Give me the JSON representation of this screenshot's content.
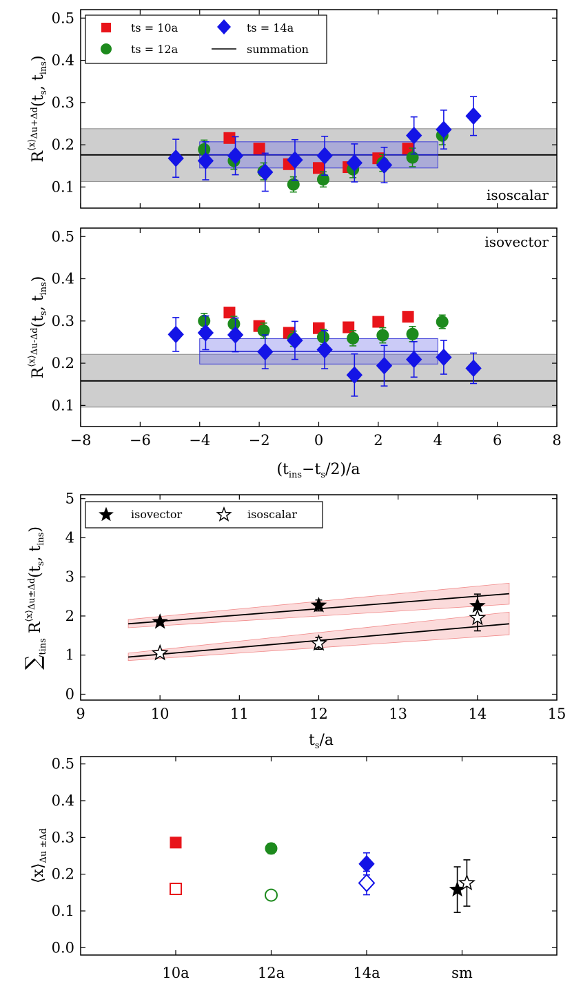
{
  "chart_data": [
    {
      "id": "panel1",
      "type": "scatter",
      "annotation": "isoscalar",
      "ylabel": "R⟨x⟩Δu+Δd(ts, tins)",
      "xlim": [
        -8,
        8
      ],
      "ylim": [
        0.05,
        0.52
      ],
      "yticks": [
        "0.1",
        "0.2",
        "0.3",
        "0.4",
        "0.5"
      ],
      "legend": [
        {
          "marker": "square",
          "color": "#e8141a",
          "label": "ts = 10a"
        },
        {
          "marker": "diamond",
          "color": "#1414e6",
          "label": "ts = 14a"
        },
        {
          "marker": "circle",
          "color": "#1d8a1d",
          "label": "ts = 12a"
        },
        {
          "marker": "line",
          "color": "#000000",
          "label": "summation"
        }
      ],
      "summation": {
        "value": 0.176,
        "low": 0.113,
        "high": 0.238
      },
      "plateau": {
        "x0": -4,
        "x1": 4,
        "value": 0.176,
        "low": 0.145,
        "high": 0.207
      },
      "series": [
        {
          "name": "ts = 10a",
          "marker": "square",
          "color": "#e8141a",
          "x": [
            -3,
            -2,
            -1,
            0,
            1,
            2,
            3
          ],
          "y": [
            0.216,
            0.191,
            0.154,
            0.145,
            0.147,
            0.168,
            0.191
          ],
          "err": [
            0.008,
            0.008,
            0.008,
            0.008,
            0.008,
            0.008,
            0.008
          ]
        },
        {
          "name": "ts = 12a",
          "marker": "circle",
          "color": "#1d8a1d",
          "x": [
            -3.85,
            -2.85,
            -1.85,
            -0.85,
            0.15,
            1.15,
            2.15,
            3.15,
            4.15
          ],
          "y": [
            0.189,
            0.162,
            0.137,
            0.106,
            0.118,
            0.142,
            0.157,
            0.17,
            0.222
          ],
          "err": [
            0.022,
            0.02,
            0.02,
            0.018,
            0.018,
            0.02,
            0.02,
            0.022,
            0.022
          ]
        },
        {
          "name": "ts = 14a",
          "marker": "diamond",
          "color": "#1414e6",
          "x": [
            -4.8,
            -3.8,
            -2.8,
            -1.8,
            -0.8,
            0.2,
            1.2,
            2.2,
            3.2,
            4.2,
            5.2
          ],
          "y": [
            0.168,
            0.162,
            0.174,
            0.135,
            0.164,
            0.174,
            0.157,
            0.152,
            0.222,
            0.236,
            0.268
          ],
          "err": [
            0.045,
            0.045,
            0.045,
            0.045,
            0.048,
            0.046,
            0.045,
            0.042,
            0.044,
            0.046,
            0.046
          ]
        }
      ]
    },
    {
      "id": "panel2",
      "type": "scatter",
      "annotation": "isovector",
      "ylabel": "R⟨x⟩Δu-Δd(ts, tins)",
      "xlabel": "(tins−ts/2)/a",
      "xlim": [
        -8,
        8
      ],
      "ylim": [
        0.05,
        0.52
      ],
      "xticks": [
        "−8",
        "−6",
        "−4",
        "−2",
        "0",
        "2",
        "4",
        "6",
        "8"
      ],
      "yticks": [
        "0.1",
        "0.2",
        "0.3",
        "0.4",
        "0.5"
      ],
      "summation": {
        "value": 0.158,
        "low": 0.096,
        "high": 0.221
      },
      "plateau": {
        "x0": -4,
        "x1": 4,
        "value": 0.228,
        "low": 0.198,
        "high": 0.258
      },
      "series": [
        {
          "name": "ts = 10a",
          "marker": "square",
          "color": "#e8141a",
          "x": [
            -3,
            -2,
            -1,
            0,
            1,
            2,
            3
          ],
          "y": [
            0.32,
            0.288,
            0.272,
            0.283,
            0.285,
            0.298,
            0.31
          ],
          "err": [
            0.008,
            0.008,
            0.008,
            0.008,
            0.008,
            0.008,
            0.008
          ]
        },
        {
          "name": "ts = 12a",
          "marker": "circle",
          "color": "#1d8a1d",
          "x": [
            -3.85,
            -2.85,
            -1.85,
            -0.85,
            0.15,
            1.15,
            2.15,
            3.15,
            4.15
          ],
          "y": [
            0.3,
            0.293,
            0.277,
            0.258,
            0.262,
            0.259,
            0.266,
            0.269,
            0.298
          ],
          "err": [
            0.018,
            0.018,
            0.018,
            0.018,
            0.018,
            0.018,
            0.018,
            0.018,
            0.016
          ]
        },
        {
          "name": "ts = 14a",
          "marker": "diamond",
          "color": "#1414e6",
          "x": [
            -4.8,
            -3.8,
            -2.8,
            -1.8,
            -0.8,
            0.2,
            1.2,
            2.2,
            3.2,
            4.2,
            5.2
          ],
          "y": [
            0.268,
            0.272,
            0.267,
            0.227,
            0.254,
            0.232,
            0.172,
            0.194,
            0.209,
            0.214,
            0.188
          ],
          "err": [
            0.04,
            0.04,
            0.04,
            0.04,
            0.045,
            0.045,
            0.05,
            0.048,
            0.042,
            0.04,
            0.036
          ]
        }
      ]
    },
    {
      "id": "panel3",
      "type": "scatter",
      "ylabel": "∑tins R⟨x⟩Δu±Δd(ts, tins)",
      "xlabel": "ts/a",
      "xlim": [
        9,
        15
      ],
      "ylim": [
        -0.15,
        5.1
      ],
      "xticks": [
        "9",
        "10",
        "11",
        "12",
        "13",
        "14",
        "15"
      ],
      "yticks": [
        "0",
        "1",
        "2",
        "3",
        "4",
        "5"
      ],
      "legend": [
        {
          "marker": "filled-star",
          "label": "isovector"
        },
        {
          "marker": "open-star",
          "label": "isoscalar"
        }
      ],
      "fits": [
        {
          "name": "isovector",
          "x": [
            9.6,
            14.4
          ],
          "y": [
            1.8,
            2.57
          ],
          "band": [
            [
              1.7,
              1.91
            ],
            [
              2.3,
              2.84
            ]
          ]
        },
        {
          "name": "isoscalar",
          "x": [
            9.6,
            14.4
          ],
          "y": [
            0.95,
            1.8
          ],
          "band": [
            [
              0.86,
              1.05
            ],
            [
              1.52,
              2.1
            ]
          ]
        }
      ],
      "series": [
        {
          "name": "isovector",
          "marker": "filled-star",
          "color": "#000000",
          "x": [
            10,
            12,
            14
          ],
          "y": [
            1.85,
            2.27,
            2.26
          ],
          "err": [
            0.05,
            0.14,
            0.3
          ]
        },
        {
          "name": "isoscalar",
          "marker": "open-star",
          "color": "#000000",
          "x": [
            10,
            12,
            14
          ],
          "y": [
            1.05,
            1.3,
            1.95
          ],
          "err": [
            0.05,
            0.15,
            0.33
          ]
        }
      ]
    },
    {
      "id": "panel4",
      "type": "scatter",
      "ylabel": "⟨x⟩Δu±Δd",
      "categories": [
        "10a",
        "12a",
        "14a",
        "sm"
      ],
      "ylim": [
        -0.02,
        0.52
      ],
      "yticks": [
        "0.0",
        "0.1",
        "0.2",
        "0.3",
        "0.4",
        "0.5"
      ],
      "points": [
        {
          "category": "10a",
          "marker": "square",
          "filled": true,
          "color": "#e8141a",
          "y": 0.286,
          "err": 0.008
        },
        {
          "category": "10a",
          "marker": "square",
          "filled": false,
          "color": "#e8141a",
          "y": 0.16,
          "err": 0.008
        },
        {
          "category": "12a",
          "marker": "circle",
          "filled": true,
          "color": "#1d8a1d",
          "y": 0.27,
          "err": 0.014
        },
        {
          "category": "12a",
          "marker": "circle",
          "filled": false,
          "color": "#1d8a1d",
          "y": 0.143,
          "err": 0.013
        },
        {
          "category": "14a",
          "marker": "diamond",
          "filled": true,
          "color": "#1414e6",
          "y": 0.228,
          "err": 0.03
        },
        {
          "category": "14a",
          "marker": "diamond",
          "filled": false,
          "color": "#1414e6",
          "y": 0.176,
          "err": 0.032
        },
        {
          "category": "sm",
          "marker": "star",
          "filled": true,
          "color": "#000000",
          "y": 0.158,
          "err": 0.062,
          "offset": -0.03
        },
        {
          "category": "sm",
          "marker": "star",
          "filled": false,
          "color": "#000000",
          "y": 0.176,
          "err": 0.063,
          "offset": 0.03
        }
      ]
    }
  ]
}
